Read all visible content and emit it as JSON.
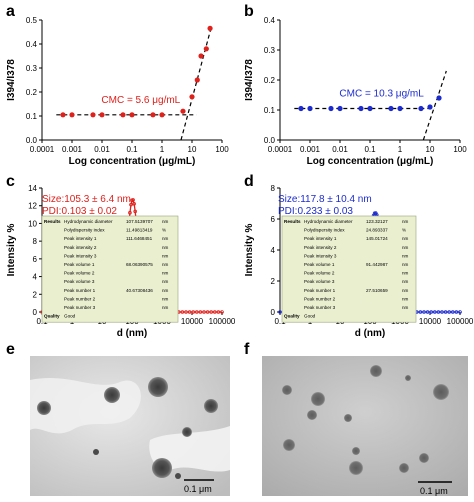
{
  "panels": {
    "a": {
      "letter": "a",
      "annotation": "CMC = 5.6 μg/mL",
      "xlabel": "Log concentration (μg/mL)",
      "ylabel": "I394/I378",
      "color": "#e0201b"
    },
    "b": {
      "letter": "b",
      "annotation": "CMC = 10.3 μg/mL",
      "xlabel": "Log concentration (μg/mL)",
      "ylabel": "I394/I378",
      "color": "#1c2bd0"
    },
    "c": {
      "letter": "c",
      "size_text": "Size:105.3 ± 6.4 nm",
      "pdi_text": "PDI:0.103 ± 0.02",
      "xlabel": "d (nm)",
      "ylabel": "Intensity %",
      "color": "#e0201b"
    },
    "d": {
      "letter": "d",
      "size_text": "Size:117.8 ± 10.4 nm",
      "pdi_text": "PDI:0.233 ± 0.03",
      "xlabel": "d (nm)",
      "ylabel": "Intensity %",
      "color": "#1c2bd0"
    },
    "e": {
      "letter": "e",
      "scale": "0.1 μm"
    },
    "f": {
      "letter": "f",
      "scale": "0.1 μm"
    }
  },
  "tables": {
    "c": {
      "header": [
        "Results",
        "Hydrodynamic diameter",
        "107.5139707",
        "nm"
      ],
      "rows": [
        [
          "",
          "Polydispersity index",
          "11.49813419",
          "%"
        ],
        [
          "",
          "Peak intensity 1",
          "111.6468451",
          "nm"
        ],
        [
          "",
          "Peak intensity 2",
          "",
          "nm"
        ],
        [
          "",
          "Peak intensity 3",
          "",
          "nm"
        ],
        [
          "",
          "Peak volume 1",
          "68.06390575",
          "nm"
        ],
        [
          "",
          "Peak volume 2",
          "",
          "nm"
        ],
        [
          "",
          "Peak volume 3",
          "",
          "nm"
        ],
        [
          "",
          "Peak number 1",
          "40.67308436",
          "nm"
        ],
        [
          "",
          "Peak number 2",
          "",
          "nm"
        ],
        [
          "",
          "Peak number 3",
          "",
          "nm"
        ]
      ],
      "quality": [
        "Quality",
        "Good"
      ]
    },
    "d": {
      "header": [
        "Results",
        "Hydrodynamic diameter",
        "123.32127",
        "nm"
      ],
      "rows": [
        [
          "",
          "Polydispersity index",
          "24.893337",
          "%"
        ],
        [
          "",
          "Peak intensity 1",
          "145.01724",
          "nm"
        ],
        [
          "",
          "Peak intensity 2",
          "",
          "nm"
        ],
        [
          "",
          "Peak intensity 3",
          "",
          "nm"
        ],
        [
          "",
          "Peak volume 1",
          "91.442987",
          "nm"
        ],
        [
          "",
          "Peak volume 2",
          "",
          "nm"
        ],
        [
          "",
          "Peak volume 3",
          "",
          "nm"
        ],
        [
          "",
          "Peak number 1",
          "27.510659",
          "nm"
        ],
        [
          "",
          "Peak number 2",
          "",
          "nm"
        ],
        [
          "",
          "Peak number 3",
          "",
          "nm"
        ]
      ],
      "quality": [
        "Quality",
        "Good"
      ]
    }
  },
  "chart_data": [
    {
      "type": "scatter",
      "panel": "a",
      "xlabel": "Log concentration (μg/mL)",
      "ylabel": "I394/I378",
      "xscale": "log",
      "xlim": [
        0.0001,
        100
      ],
      "ylim": [
        0,
        0.5
      ],
      "xticks": [
        "0.0001",
        "0.001",
        "0.01",
        "0.1",
        "1",
        "10",
        "100"
      ],
      "yticks": [
        "0.0",
        "0.1",
        "0.2",
        "0.3",
        "0.4",
        "0.5"
      ],
      "x": [
        0.0005,
        0.001,
        0.005,
        0.01,
        0.05,
        0.1,
        0.5,
        1,
        5,
        10,
        15,
        20,
        30,
        40
      ],
      "y": [
        0.105,
        0.105,
        0.105,
        0.105,
        0.105,
        0.105,
        0.105,
        0.105,
        0.12,
        0.18,
        0.25,
        0.35,
        0.38,
        0.465
      ],
      "annotation": "CMC = 5.6 μg/mL"
    },
    {
      "type": "scatter",
      "panel": "b",
      "xlabel": "Log concentration (μg/mL)",
      "ylabel": "I394/I378",
      "xscale": "log",
      "xlim": [
        0.0001,
        100
      ],
      "ylim": [
        0,
        0.4
      ],
      "xticks": [
        "0.0001",
        "0.001",
        "0.01",
        "0.1",
        "1",
        "10",
        "100"
      ],
      "yticks": [
        "0.0",
        "0.1",
        "0.2",
        "0.3",
        "0.4"
      ],
      "x": [
        0.0005,
        0.001,
        0.005,
        0.01,
        0.05,
        0.1,
        0.5,
        1,
        5,
        10,
        20
      ],
      "y": [
        0.105,
        0.105,
        0.105,
        0.105,
        0.105,
        0.105,
        0.105,
        0.105,
        0.105,
        0.11,
        0.14
      ],
      "annotation": "CMC = 10.3 μg/mL"
    },
    {
      "type": "line",
      "panel": "c",
      "xlabel": "d (nm)",
      "ylabel": "Intensity %",
      "xscale": "log",
      "xlim": [
        0.1,
        100000
      ],
      "ylim": [
        0,
        14
      ],
      "xticks": [
        "0.1",
        "1",
        "10",
        "100",
        "1000",
        "10000",
        "100000"
      ],
      "yticks": [
        "0",
        "2",
        "4",
        "6",
        "8",
        "10",
        "12",
        "14"
      ],
      "peak_x": 105,
      "peak_y": 12.7
    },
    {
      "type": "line",
      "panel": "d",
      "xlabel": "d (nm)",
      "ylabel": "Intensity %",
      "xscale": "log",
      "xlim": [
        0.1,
        100000
      ],
      "ylim": [
        0,
        8
      ],
      "xticks": [
        "0.1",
        "1",
        "10",
        "100",
        "1000",
        "10000",
        "100000"
      ],
      "yticks": [
        "0",
        "2",
        "4",
        "6",
        "8"
      ],
      "peak_x": 150,
      "peak_y": 6.4
    }
  ]
}
